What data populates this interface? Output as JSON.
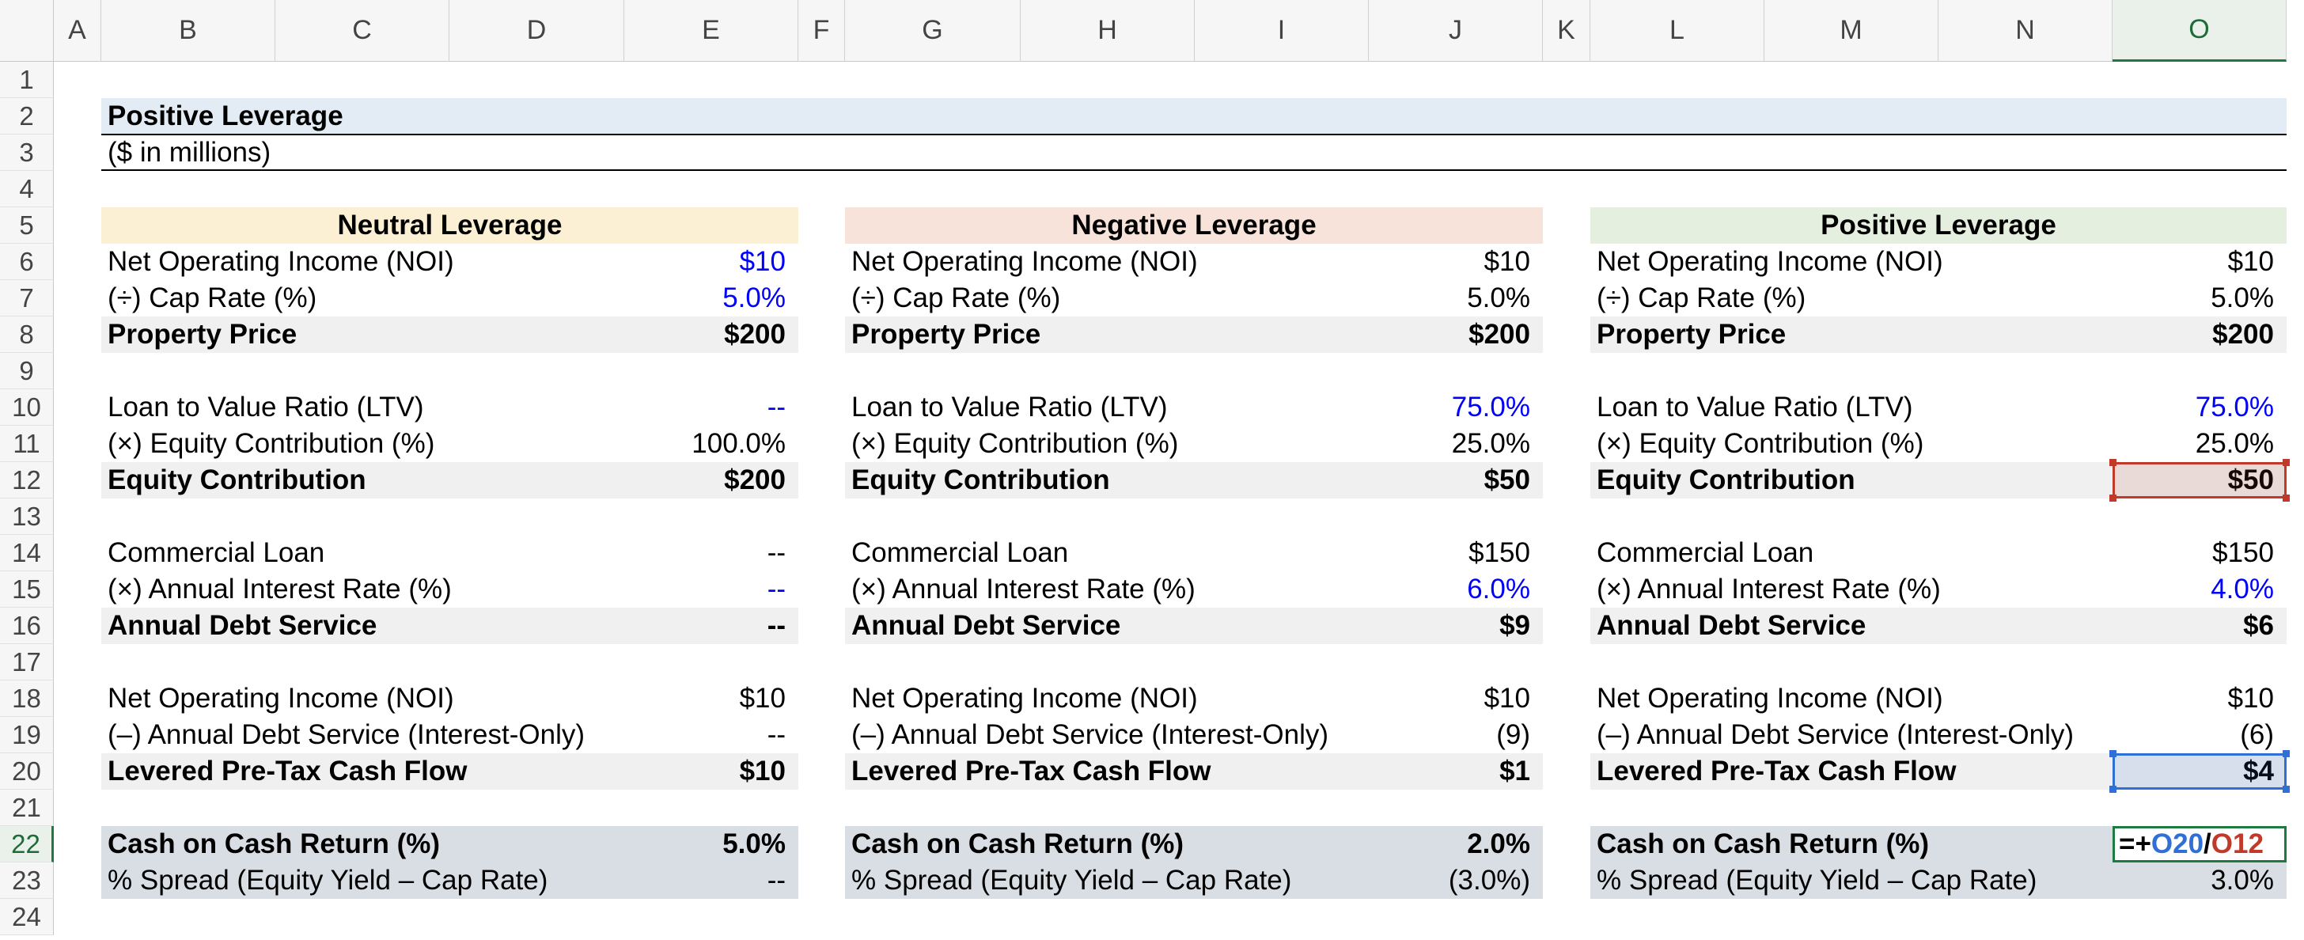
{
  "columns": [
    "A",
    "B",
    "C",
    "D",
    "E",
    "F",
    "G",
    "H",
    "I",
    "J",
    "K",
    "L",
    "M",
    "N",
    "O"
  ],
  "rows": [
    "1",
    "2",
    "3",
    "4",
    "5",
    "6",
    "7",
    "8",
    "9",
    "10",
    "11",
    "12",
    "13",
    "14",
    "15",
    "16",
    "17",
    "18",
    "19",
    "20",
    "21",
    "22",
    "23",
    "24"
  ],
  "active_column": "O",
  "active_row": "22",
  "sheet": {
    "title": "Positive Leverage",
    "subtitle": "($ in millions)"
  },
  "colors": {
    "neutral_header": "#fbf0d4",
    "negative_header": "#f7e3d9",
    "positive_header": "#e4efdf",
    "title_band": "#e3ecf4",
    "bold_row_band": "#f0f0f0",
    "coc_band": "#d9dee5",
    "input_blue": "#0000ff",
    "ref_blue": "#2f6fd6",
    "ref_red": "#c0392b",
    "active_green": "#1e7a3f"
  },
  "sections": [
    {
      "header": "Neutral Leverage",
      "rows": [
        {
          "label": "Net Operating Income (NOI)",
          "value": "$10",
          "bold": false,
          "input": true
        },
        {
          "label": "(÷) Cap Rate (%)",
          "value": "5.0%",
          "bold": false,
          "input": true
        },
        {
          "label": "Property Price",
          "value": "$200",
          "bold": true,
          "input": false
        },
        {
          "label": "Loan to Value Ratio (LTV)",
          "value": "--",
          "bold": false,
          "input": true
        },
        {
          "label": "(×) Equity Contribution (%)",
          "value": "100.0%",
          "bold": false,
          "input": false
        },
        {
          "label": "Equity Contribution",
          "value": "$200",
          "bold": true,
          "input": false
        },
        {
          "label": "Commercial Loan",
          "value": "--",
          "bold": false,
          "input": false
        },
        {
          "label": "(×) Annual Interest Rate (%)",
          "value": "--",
          "bold": false,
          "input": true
        },
        {
          "label": "Annual Debt Service",
          "value": "--",
          "bold": true,
          "input": false
        },
        {
          "label": "Net Operating Income (NOI)",
          "value": "$10",
          "bold": false,
          "input": false
        },
        {
          "label": "(–) Annual Debt Service (Interest-Only)",
          "value": "--",
          "bold": false,
          "input": false
        },
        {
          "label": "Levered Pre-Tax Cash Flow",
          "value": "$10",
          "bold": true,
          "input": false
        },
        {
          "label": "Cash on Cash Return (%)",
          "value": "5.0%",
          "bold": true,
          "input": false
        },
        {
          "label": "% Spread (Equity Yield – Cap Rate)",
          "value": "--",
          "bold": false,
          "input": false
        }
      ]
    },
    {
      "header": "Negative Leverage",
      "rows": [
        {
          "label": "Net Operating Income (NOI)",
          "value": "$10",
          "bold": false,
          "input": false
        },
        {
          "label": "(÷) Cap Rate (%)",
          "value": "5.0%",
          "bold": false,
          "input": false
        },
        {
          "label": "Property Price",
          "value": "$200",
          "bold": true,
          "input": false
        },
        {
          "label": "Loan to Value Ratio (LTV)",
          "value": "75.0%",
          "bold": false,
          "input": true
        },
        {
          "label": "(×) Equity Contribution (%)",
          "value": "25.0%",
          "bold": false,
          "input": false
        },
        {
          "label": "Equity Contribution",
          "value": "$50",
          "bold": true,
          "input": false
        },
        {
          "label": "Commercial Loan",
          "value": "$150",
          "bold": false,
          "input": false
        },
        {
          "label": "(×) Annual Interest Rate (%)",
          "value": "6.0%",
          "bold": false,
          "input": true
        },
        {
          "label": "Annual Debt Service",
          "value": "$9",
          "bold": true,
          "input": false
        },
        {
          "label": "Net Operating Income (NOI)",
          "value": "$10",
          "bold": false,
          "input": false
        },
        {
          "label": "(–) Annual Debt Service (Interest-Only)",
          "value": "(9)",
          "bold": false,
          "input": false
        },
        {
          "label": "Levered Pre-Tax Cash Flow",
          "value": "$1",
          "bold": true,
          "input": false
        },
        {
          "label": "Cash on Cash Return (%)",
          "value": "2.0%",
          "bold": true,
          "input": false
        },
        {
          "label": "% Spread (Equity Yield – Cap Rate)",
          "value": "(3.0%)",
          "bold": false,
          "input": false
        }
      ]
    },
    {
      "header": "Positive Leverage",
      "rows": [
        {
          "label": "Net Operating Income (NOI)",
          "value": "$10",
          "bold": false,
          "input": false
        },
        {
          "label": "(÷) Cap Rate (%)",
          "value": "5.0%",
          "bold": false,
          "input": false
        },
        {
          "label": "Property Price",
          "value": "$200",
          "bold": true,
          "input": false
        },
        {
          "label": "Loan to Value Ratio (LTV)",
          "value": "75.0%",
          "bold": false,
          "input": true
        },
        {
          "label": "(×) Equity Contribution (%)",
          "value": "25.0%",
          "bold": false,
          "input": false
        },
        {
          "label": "Equity Contribution",
          "value": "$50",
          "bold": true,
          "input": false
        },
        {
          "label": "Commercial Loan",
          "value": "$150",
          "bold": false,
          "input": false
        },
        {
          "label": "(×) Annual Interest Rate (%)",
          "value": "4.0%",
          "bold": false,
          "input": true
        },
        {
          "label": "Annual Debt Service",
          "value": "$6",
          "bold": true,
          "input": false
        },
        {
          "label": "Net Operating Income (NOI)",
          "value": "$10",
          "bold": false,
          "input": false
        },
        {
          "label": "(–) Annual Debt Service (Interest-Only)",
          "value": "(6)",
          "bold": false,
          "input": false
        },
        {
          "label": "Levered Pre-Tax Cash Flow",
          "value": "$4",
          "bold": true,
          "input": false
        },
        {
          "label": "Cash on Cash Return (%)",
          "value": "",
          "bold": true,
          "input": false
        },
        {
          "label": "% Spread (Equity Yield – Cap Rate)",
          "value": "3.0%",
          "bold": false,
          "input": false
        }
      ]
    }
  ],
  "formula_cell": {
    "prefix": "=+",
    "ref1": "O20",
    "op": "/",
    "ref2": "O12"
  }
}
